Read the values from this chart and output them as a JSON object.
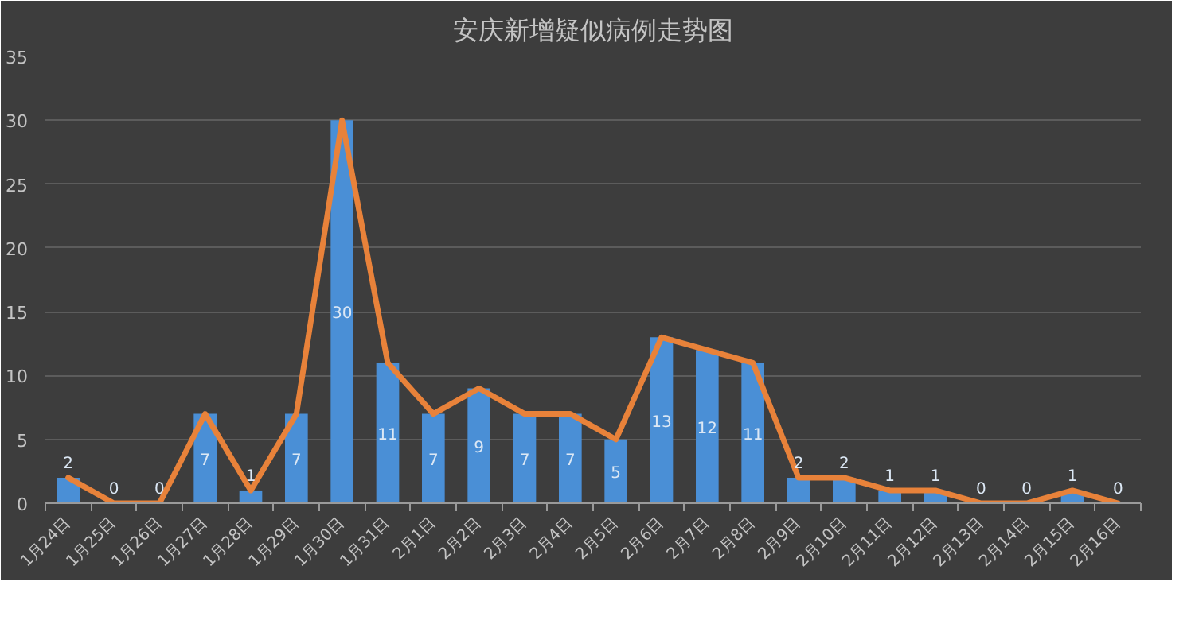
{
  "chart_data": {
    "type": "bar",
    "title": "安庆新增疑似病例走势图",
    "categories": [
      "1月24日",
      "1月25日",
      "1月26日",
      "1月27日",
      "1月28日",
      "1月29日",
      "1月30日",
      "1月31日",
      "2月1日",
      "2月2日",
      "2月3日",
      "2月4日",
      "2月5日",
      "2月6日",
      "2月7日",
      "2月8日",
      "2月9日",
      "2月10日",
      "2月11日",
      "2月12日",
      "2月13日",
      "2月14日",
      "2月15日",
      "2月16日"
    ],
    "series": [
      {
        "color": "#4a8fd6",
        "data_labels": true,
        "values": [
          2,
          0,
          0,
          7,
          1,
          7,
          30,
          11,
          7,
          9,
          7,
          7,
          5,
          13,
          12,
          11,
          2,
          2,
          1,
          1,
          0,
          0,
          1,
          0
        ]
      },
      {
        "type": "line",
        "color": "#e8823a",
        "line_style": "solid",
        "values": [
          2,
          0,
          0,
          7,
          1,
          7,
          30,
          11,
          7,
          9,
          7,
          7,
          5,
          13,
          12,
          11,
          2,
          2,
          1,
          1,
          0,
          0,
          1,
          0
        ]
      }
    ],
    "ylim": [
      0,
      35
    ],
    "yticks": [
      0,
      5,
      10,
      15,
      20,
      25,
      30,
      35
    ],
    "grid": "y"
  }
}
